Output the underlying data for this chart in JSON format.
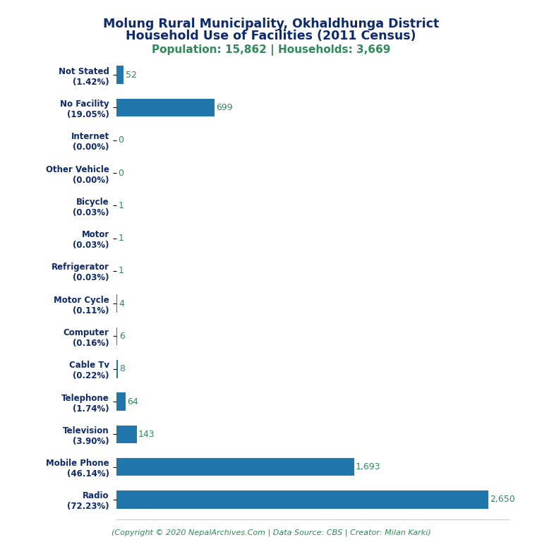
{
  "title_line1": "Molung Rural Municipality, Okhaldhunga District",
  "title_line2": "Household Use of Facilities (2011 Census)",
  "subtitle": "Population: 15,862 | Households: 3,669",
  "footer": "(Copyright © 2020 NepalArchives.Com | Data Source: CBS | Creator: Milan Karki)",
  "categories": [
    "Not Stated\n(1.42%)",
    "No Facility\n(19.05%)",
    "Internet\n(0.00%)",
    "Other Vehicle\n(0.00%)",
    "Bicycle\n(0.03%)",
    "Motor\n(0.03%)",
    "Refrigerator\n(0.03%)",
    "Motor Cycle\n(0.11%)",
    "Computer\n(0.16%)",
    "Cable Tv\n(0.22%)",
    "Telephone\n(1.74%)",
    "Television\n(3.90%)",
    "Mobile Phone\n(46.14%)",
    "Radio\n(72.23%)"
  ],
  "values": [
    52,
    699,
    0,
    0,
    1,
    1,
    1,
    4,
    6,
    8,
    64,
    143,
    1693,
    2650
  ],
  "bar_color": "#2176ae",
  "value_color": "#2e8b57",
  "title_color": "#0d2a6e",
  "subtitle_color": "#2e8b57",
  "footer_color": "#2e8b57",
  "label_color": "#0d2a6e",
  "background_color": "#ffffff",
  "xlim": [
    0,
    2800
  ]
}
